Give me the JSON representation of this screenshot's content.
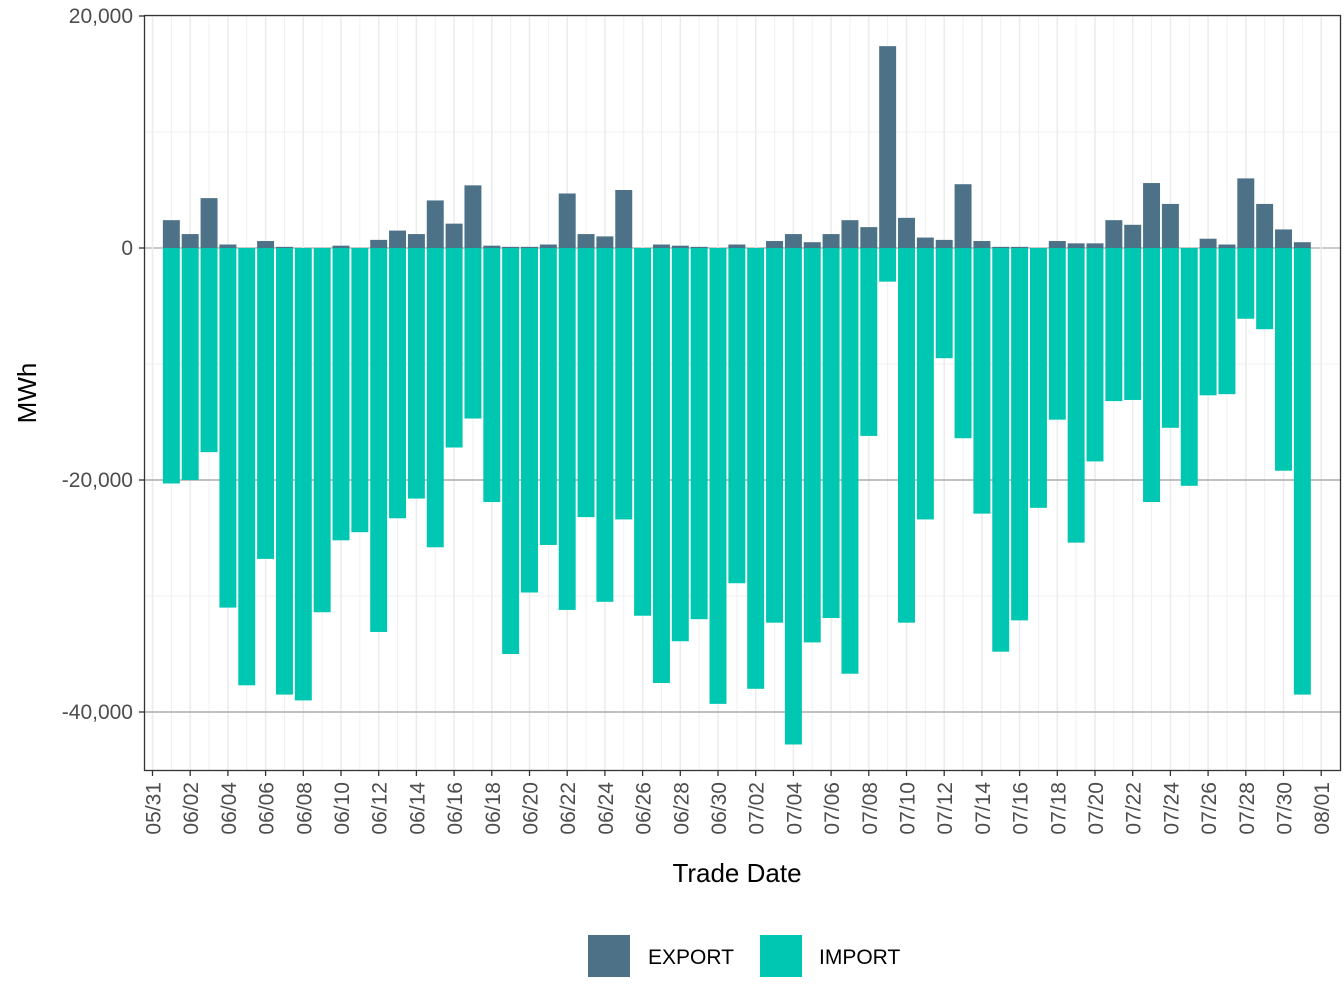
{
  "chart_data": {
    "type": "bar",
    "stacking": "diverging",
    "xlabel": "Trade Date",
    "ylabel": "MWh",
    "ylim": [
      -45000,
      20000
    ],
    "yticks": [
      20000,
      0,
      -20000,
      -40000
    ],
    "ytick_labels": [
      "20,000",
      "0",
      "-20,000",
      "-40,000"
    ],
    "xtick_labels": [
      "05/31",
      "06/02",
      "06/04",
      "06/06",
      "06/08",
      "06/10",
      "06/12",
      "06/14",
      "06/16",
      "06/18",
      "06/20",
      "06/22",
      "06/24",
      "06/26",
      "06/28",
      "06/30",
      "07/02",
      "07/04",
      "07/06",
      "07/08",
      "07/10",
      "07/12",
      "07/14",
      "07/16",
      "07/18",
      "07/20",
      "07/22",
      "07/24",
      "07/26",
      "07/28",
      "07/30",
      "08/01"
    ],
    "grid": true,
    "legend_position": "bottom",
    "categories": [
      "06/01",
      "06/02",
      "06/03",
      "06/04",
      "06/05",
      "06/06",
      "06/07",
      "06/08",
      "06/09",
      "06/10",
      "06/11",
      "06/12",
      "06/13",
      "06/14",
      "06/15",
      "06/16",
      "06/17",
      "06/18",
      "06/19",
      "06/20",
      "06/21",
      "06/22",
      "06/23",
      "06/24",
      "06/25",
      "06/26",
      "06/27",
      "06/28",
      "06/29",
      "06/30",
      "07/01",
      "07/02",
      "07/03",
      "07/04",
      "07/05",
      "07/06",
      "07/07",
      "07/08",
      "07/09",
      "07/10",
      "07/11",
      "07/12",
      "07/13",
      "07/14",
      "07/15",
      "07/16",
      "07/17",
      "07/18",
      "07/19",
      "07/20",
      "07/21",
      "07/22",
      "07/23",
      "07/24",
      "07/25",
      "07/26",
      "07/27",
      "07/28",
      "07/29",
      "07/30",
      "07/31"
    ],
    "series": [
      {
        "name": "EXPORT",
        "color": "#4d7287",
        "values": [
          2400,
          1200,
          4300,
          300,
          0,
          600,
          100,
          0,
          0,
          200,
          0,
          700,
          1500,
          1200,
          4100,
          2100,
          5400,
          200,
          100,
          100,
          300,
          4700,
          1200,
          1000,
          5000,
          0,
          300,
          200,
          100,
          0,
          300,
          0,
          600,
          1200,
          500,
          1200,
          2400,
          1800,
          17400,
          2600,
          900,
          700,
          5500,
          600,
          100,
          100,
          0,
          600,
          400,
          400,
          2400,
          2000,
          5600,
          3800,
          0,
          800,
          300,
          6000,
          3800,
          1600,
          500
        ]
      },
      {
        "name": "IMPORT",
        "color": "#00c7b1",
        "values": [
          -20300,
          -20000,
          -17600,
          -31000,
          -37700,
          -26800,
          -38500,
          -39000,
          -31400,
          -25200,
          -24500,
          -33100,
          -23300,
          -21600,
          -25800,
          -17200,
          -14700,
          -21900,
          -35000,
          -29700,
          -25600,
          -31200,
          -23200,
          -30500,
          -23400,
          -31700,
          -37500,
          -33900,
          -32000,
          -39300,
          -28900,
          -38000,
          -32300,
          -42800,
          -34000,
          -31900,
          -36700,
          -16200,
          -2900,
          -32300,
          -23400,
          -9500,
          -16400,
          -22900,
          -34800,
          -32100,
          -22400,
          -14800,
          -25400,
          -18400,
          -13200,
          -13100,
          -21900,
          -15500,
          -20500,
          -12700,
          -12600,
          -6100,
          -7000,
          -19200,
          -38500
        ]
      }
    ]
  }
}
